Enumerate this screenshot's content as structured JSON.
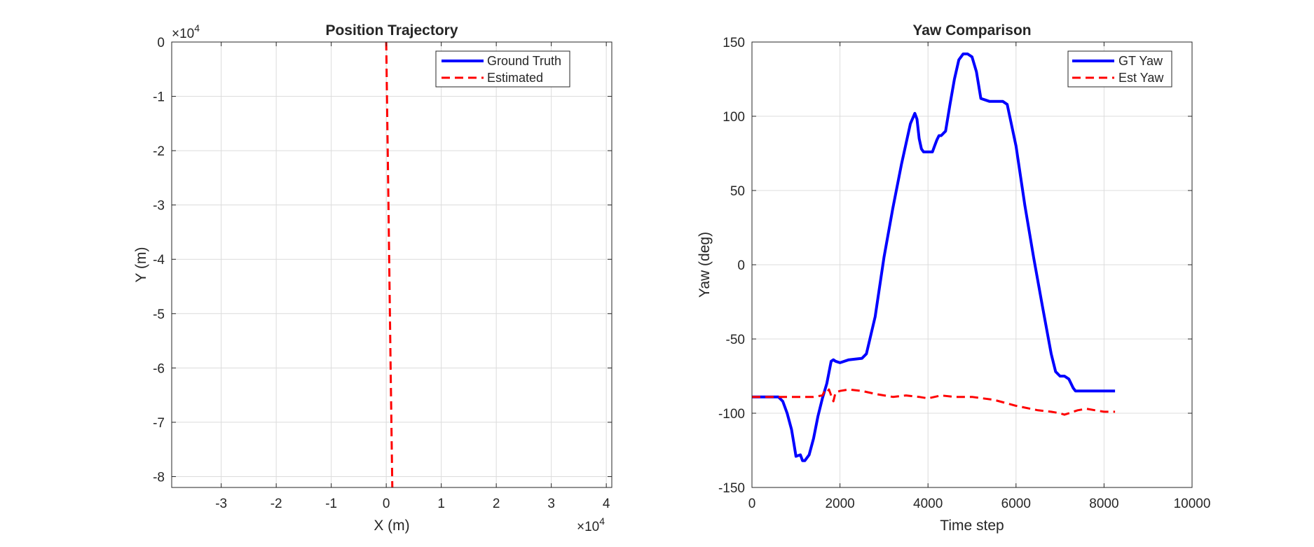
{
  "chart_data": [
    {
      "type": "line",
      "title": "Position Trajectory",
      "xlabel": "X (m)",
      "ylabel": "Y (m)",
      "xlim": [
        -3.9,
        4.1
      ],
      "ylim": [
        -8.2,
        0
      ],
      "x_exponent_label": "×10",
      "x_exponent_power": "4",
      "y_exponent_label": "×10",
      "y_exponent_power": "4",
      "xticks": [
        -3,
        -2,
        -1,
        0,
        1,
        2,
        3,
        4
      ],
      "yticks": [
        0,
        -1,
        -2,
        -3,
        -4,
        -5,
        -6,
        -7,
        -8
      ],
      "grid": true,
      "legend_position": "top-right",
      "series": [
        {
          "name": "Ground Truth",
          "color": "#0000ff",
          "style": "solid",
          "x": [
            0.0,
            0.0
          ],
          "y": [
            0.0,
            0.0
          ]
        },
        {
          "name": "Estimated",
          "color": "#ff0000",
          "style": "dashed",
          "x": [
            0.0,
            0.04,
            0.08,
            0.11
          ],
          "y": [
            0.0,
            -3.0,
            -6.0,
            -8.2
          ]
        }
      ]
    },
    {
      "type": "line",
      "title": "Yaw Comparison",
      "xlabel": "Time step",
      "ylabel": "Yaw (deg)",
      "xlim": [
        0,
        10000
      ],
      "ylim": [
        -150,
        150
      ],
      "xticks": [
        0,
        2000,
        4000,
        6000,
        8000,
        10000
      ],
      "yticks": [
        150,
        100,
        50,
        0,
        -50,
        -100,
        -150
      ],
      "grid": true,
      "legend_position": "top-right",
      "series": [
        {
          "name": "GT Yaw",
          "color": "#0000ff",
          "style": "solid",
          "x": [
            0,
            600,
            700,
            800,
            900,
            950,
            1000,
            1100,
            1150,
            1200,
            1300,
            1400,
            1500,
            1600,
            1700,
            1800,
            1850,
            1900,
            2000,
            2200,
            2500,
            2600,
            2800,
            3000,
            3200,
            3400,
            3600,
            3700,
            3750,
            3800,
            3850,
            3900,
            4100,
            4150,
            4200,
            4250,
            4300,
            4400,
            4500,
            4600,
            4700,
            4800,
            4900,
            5000,
            5100,
            5200,
            5300,
            5400,
            5500,
            5700,
            5800,
            6000,
            6200,
            6400,
            6600,
            6800,
            6900,
            7000,
            7100,
            7200,
            7300,
            7350,
            7400,
            7600,
            8000,
            8250
          ],
          "y": [
            -89,
            -89,
            -92,
            -100,
            -111,
            -120,
            -129,
            -128,
            -132,
            -132,
            -128,
            -117,
            -102,
            -90,
            -80,
            -65,
            -64,
            -65,
            -66,
            -64,
            -63,
            -60,
            -35,
            5,
            38,
            68,
            95,
            102,
            98,
            85,
            78,
            76,
            76,
            80,
            84,
            87,
            87,
            90,
            108,
            125,
            138,
            142,
            142,
            140,
            130,
            112,
            111,
            110,
            110,
            110,
            108,
            80,
            40,
            5,
            -28,
            -60,
            -72,
            -75,
            -75,
            -77,
            -83,
            -85,
            -85,
            -85,
            -85,
            -85
          ]
        },
        {
          "name": "Est Yaw",
          "color": "#ff0000",
          "style": "dashed",
          "x": [
            0,
            500,
            1000,
            1400,
            1600,
            1650,
            1700,
            1750,
            1800,
            1850,
            1900,
            2000,
            2200,
            2500,
            2800,
            3200,
            3500,
            3800,
            4000,
            4300,
            4600,
            5000,
            5500,
            6000,
            6500,
            6800,
            7000,
            7100,
            7200,
            7300,
            7400,
            7600,
            7800,
            8000,
            8250
          ],
          "y": [
            -89,
            -89,
            -89,
            -89,
            -88,
            -85,
            -86,
            -84,
            -88,
            -92,
            -86,
            -85,
            -84,
            -85,
            -87,
            -89,
            -88,
            -89,
            -90,
            -88,
            -89,
            -89,
            -91,
            -95,
            -98,
            -99,
            -100,
            -101,
            -100,
            -99,
            -98,
            -97,
            -98,
            -99,
            -99
          ]
        }
      ]
    }
  ]
}
